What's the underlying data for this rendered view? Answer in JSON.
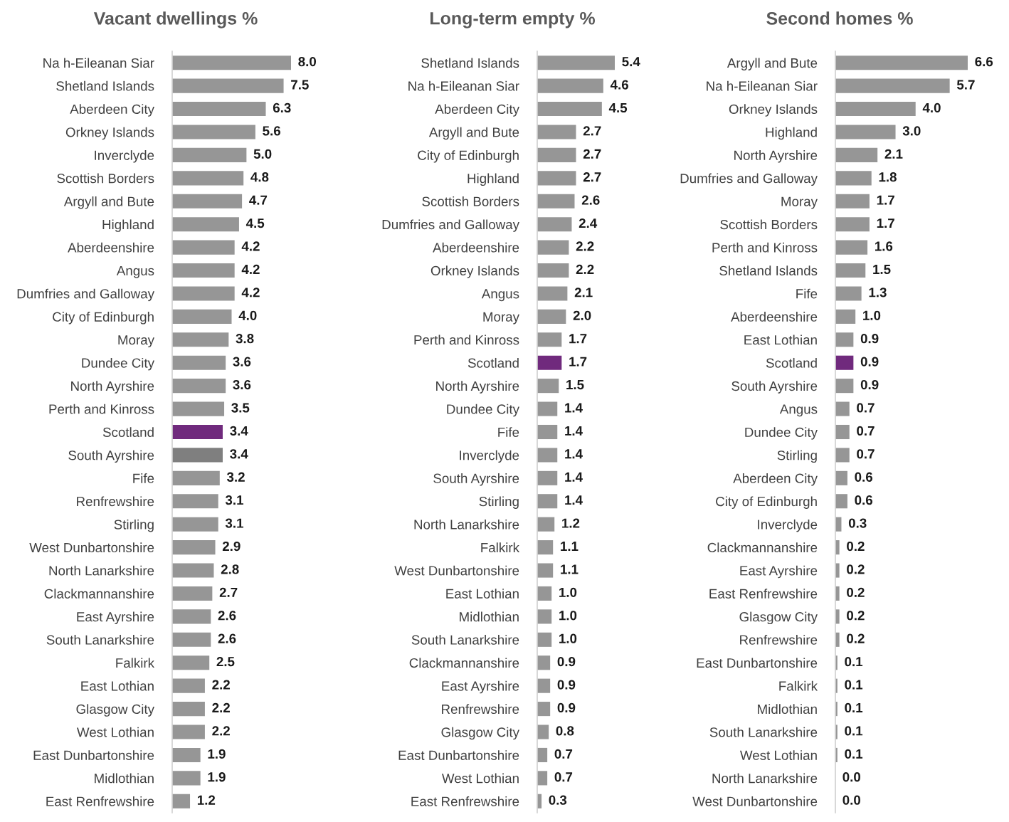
{
  "chart_data": [
    {
      "type": "bar",
      "orientation": "horizontal",
      "title": "Vacant dwellings %",
      "value_labels": [
        "8.0",
        "7.5",
        "6.3",
        "5.6",
        "5.0",
        "4.8",
        "4.7",
        "4.5",
        "4.2",
        "4.2",
        "4.2",
        "4.0",
        "3.8",
        "3.6",
        "3.6",
        "3.5",
        "3.4",
        "3.4",
        "3.2",
        "3.1",
        "3.1",
        "2.9",
        "2.8",
        "2.7",
        "2.6",
        "2.6",
        "2.5",
        "2.2",
        "2.2",
        "2.2",
        "1.9",
        "1.9",
        "1.2"
      ],
      "tick_labels": "y",
      "grid": false,
      "legend": false,
      "categories": [
        "Na h-Eileanan Siar",
        "Shetland Islands",
        "Aberdeen City",
        "Orkney Islands",
        "Inverclyde",
        "Scottish Borders",
        "Argyll and Bute",
        "Highland",
        "Aberdeenshire",
        "Angus",
        "Dumfries and Galloway",
        "City of Edinburgh",
        "Moray",
        "Dundee City",
        "North Ayrshire",
        "Perth and Kinross",
        "Scotland",
        "South Ayrshire",
        "Fife",
        "Renfrewshire",
        "Stirling",
        "West Dunbartonshire",
        "North Lanarkshire",
        "Clackmannanshire",
        "East Ayrshire",
        "South Lanarkshire",
        "Falkirk",
        "East Lothian",
        "Glasgow City",
        "West Lothian",
        "East Dunbartonshire",
        "Midlothian",
        "East Renfrewshire"
      ],
      "values": [
        8.0,
        7.5,
        6.3,
        5.6,
        5.0,
        4.8,
        4.7,
        4.5,
        4.2,
        4.2,
        4.2,
        4.0,
        3.8,
        3.6,
        3.6,
        3.5,
        3.4,
        3.4,
        3.2,
        3.1,
        3.1,
        2.9,
        2.8,
        2.7,
        2.6,
        2.6,
        2.5,
        2.2,
        2.2,
        2.2,
        1.9,
        1.9,
        1.2
      ],
      "colors": [
        "#969696",
        "#969696",
        "#969696",
        "#969696",
        "#969696",
        "#969696",
        "#969696",
        "#969696",
        "#969696",
        "#969696",
        "#969696",
        "#969696",
        "#969696",
        "#969696",
        "#969696",
        "#969696",
        "#702a7d",
        "#7f7f7f",
        "#969696",
        "#969696",
        "#969696",
        "#969696",
        "#969696",
        "#969696",
        "#969696",
        "#969696",
        "#969696",
        "#969696",
        "#969696",
        "#969696",
        "#969696",
        "#969696",
        "#969696"
      ]
    },
    {
      "type": "bar",
      "orientation": "horizontal",
      "title": "Long-term empty %",
      "value_labels": [
        "5.4",
        "4.6",
        "4.5",
        "2.7",
        "2.7",
        "2.7",
        "2.6",
        "2.4",
        "2.2",
        "2.2",
        "2.1",
        "2.0",
        "1.7",
        "1.7",
        "1.5",
        "1.4",
        "1.4",
        "1.4",
        "1.4",
        "1.4",
        "1.2",
        "1.1",
        "1.1",
        "1.0",
        "1.0",
        "1.0",
        "0.9",
        "0.9",
        "0.9",
        "0.8",
        "0.7",
        "0.7",
        "0.3"
      ],
      "tick_labels": "y",
      "grid": false,
      "legend": false,
      "categories": [
        "Shetland Islands",
        "Na h-Eileanan Siar",
        "Aberdeen City",
        "Argyll and Bute",
        "City of Edinburgh",
        "Highland",
        "Scottish Borders",
        "Dumfries and Galloway",
        "Aberdeenshire",
        "Orkney Islands",
        "Angus",
        "Moray",
        "Perth and Kinross",
        "Scotland",
        "North Ayrshire",
        "Dundee City",
        "Fife",
        "Inverclyde",
        "South Ayrshire",
        "Stirling",
        "North Lanarkshire",
        "Falkirk",
        "West Dunbartonshire",
        "East Lothian",
        "Midlothian",
        "South Lanarkshire",
        "Clackmannanshire",
        "East Ayrshire",
        "Renfrewshire",
        "Glasgow City",
        "East Dunbartonshire",
        "West Lothian",
        "East Renfrewshire"
      ],
      "values": [
        5.4,
        4.6,
        4.5,
        2.7,
        2.7,
        2.7,
        2.6,
        2.4,
        2.2,
        2.2,
        2.1,
        2.0,
        1.7,
        1.7,
        1.5,
        1.4,
        1.4,
        1.4,
        1.4,
        1.4,
        1.2,
        1.1,
        1.1,
        1.0,
        1.0,
        1.0,
        0.9,
        0.9,
        0.9,
        0.8,
        0.7,
        0.7,
        0.3
      ],
      "colors": [
        "#969696",
        "#969696",
        "#969696",
        "#969696",
        "#969696",
        "#969696",
        "#969696",
        "#969696",
        "#969696",
        "#969696",
        "#969696",
        "#969696",
        "#969696",
        "#702a7d",
        "#969696",
        "#969696",
        "#969696",
        "#969696",
        "#969696",
        "#969696",
        "#969696",
        "#969696",
        "#969696",
        "#969696",
        "#969696",
        "#969696",
        "#969696",
        "#969696",
        "#969696",
        "#969696",
        "#969696",
        "#969696",
        "#969696"
      ]
    },
    {
      "type": "bar",
      "orientation": "horizontal",
      "title": "Second homes %",
      "value_labels": [
        "6.6",
        "5.7",
        "4.0",
        "3.0",
        "2.1",
        "1.8",
        "1.7",
        "1.7",
        "1.6",
        "1.5",
        "1.3",
        "1.0",
        "0.9",
        "0.9",
        "0.9",
        "0.7",
        "0.7",
        "0.7",
        "0.6",
        "0.6",
        "0.3",
        "0.2",
        "0.2",
        "0.2",
        "0.2",
        "0.2",
        "0.1",
        "0.1",
        "0.1",
        "0.1",
        "0.1",
        "0.0",
        "0.0"
      ],
      "tick_labels": "y",
      "grid": false,
      "legend": false,
      "categories": [
        "Argyll and Bute",
        "Na h-Eileanan Siar",
        "Orkney Islands",
        "Highland",
        "North Ayrshire",
        "Dumfries and Galloway",
        "Moray",
        "Scottish Borders",
        "Perth and Kinross",
        "Shetland Islands",
        "Fife",
        "Aberdeenshire",
        "East Lothian",
        "Scotland",
        "South Ayrshire",
        "Angus",
        "Dundee City",
        "Stirling",
        "Aberdeen City",
        "City of Edinburgh",
        "Inverclyde",
        "Clackmannanshire",
        "East Ayrshire",
        "East Renfrewshire",
        "Glasgow City",
        "Renfrewshire",
        "East Dunbartonshire",
        "Falkirk",
        "Midlothian",
        "South Lanarkshire",
        "West Lothian",
        "North Lanarkshire",
        "West Dunbartonshire"
      ],
      "values": [
        6.6,
        5.7,
        4.0,
        3.0,
        2.1,
        1.8,
        1.7,
        1.7,
        1.6,
        1.5,
        1.3,
        1.0,
        0.9,
        0.9,
        0.9,
        0.7,
        0.7,
        0.7,
        0.6,
        0.6,
        0.3,
        0.2,
        0.2,
        0.2,
        0.2,
        0.2,
        0.1,
        0.1,
        0.1,
        0.1,
        0.1,
        0.0,
        0.0
      ],
      "colors": [
        "#969696",
        "#969696",
        "#969696",
        "#969696",
        "#969696",
        "#969696",
        "#969696",
        "#969696",
        "#969696",
        "#969696",
        "#969696",
        "#969696",
        "#969696",
        "#702a7d",
        "#969696",
        "#969696",
        "#969696",
        "#969696",
        "#969696",
        "#969696",
        "#969696",
        "#969696",
        "#969696",
        "#969696",
        "#969696",
        "#969696",
        "#969696",
        "#969696",
        "#969696",
        "#969696",
        "#969696",
        "#969696",
        "#969696"
      ]
    }
  ]
}
